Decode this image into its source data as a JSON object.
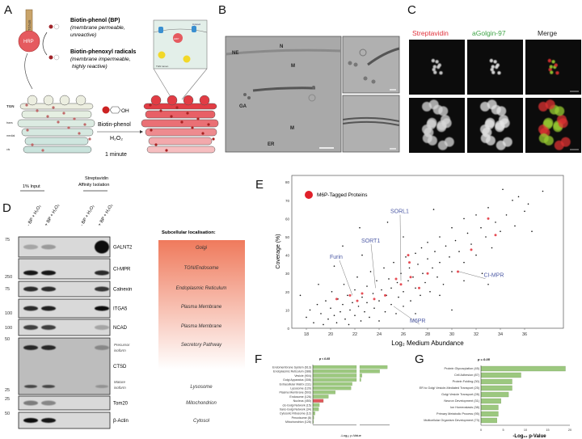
{
  "panels": {
    "a": "A",
    "b": "B",
    "c": "C",
    "d": "D",
    "e": "E",
    "f": "F",
    "g": "G"
  },
  "panel_a": {
    "tgn46_label": "TGN46",
    "hrp_label": "HRP",
    "bp_title": "Biotin-phenol (BP)",
    "bp_desc1": "(membrane permeable,",
    "bp_desc2": "unreactive)",
    "radical_title": "Biotin-phenoxyl radicals",
    "radical_desc1": "(membrane impermeable,",
    "radical_desc2": "highly reactive)",
    "inset_cytosol": "Cytosol",
    "inset_hrp": "HRP",
    "inset_lumen": "TGN lumen",
    "stack_labels": [
      "TGN",
      "trans",
      "medial",
      "cis"
    ],
    "oh_label": "OH",
    "reagent": "Biotin-phenol",
    "h2o2": "H₂O₂",
    "time": "1 minute",
    "colors": {
      "untreated": "#dcebe0",
      "labelled": "#e23c44"
    }
  },
  "panel_b": {
    "labels": [
      "NE",
      "N",
      "M",
      "GA",
      "M",
      "ER"
    ]
  },
  "panel_c": {
    "headers": [
      {
        "text": "Streptavidin",
        "color": "#e0313b"
      },
      {
        "text": "aGolgin-97",
        "color": "#3fa447"
      },
      {
        "text": "Merge",
        "color": "#222222"
      }
    ]
  },
  "panel_d": {
    "input_header": "1% Input",
    "sa_header1": "Streptavidin",
    "sa_header2": "Affinity Isolation",
    "lanes": [
      "- BP + H₂O₂",
      "+ BP + H₂O₂",
      "- BP + H₂O₂",
      "+ BP + H₂O₂"
    ],
    "mw_markers": [
      "75",
      "250",
      "75",
      "100",
      "100",
      "50",
      "25",
      "25",
      "50"
    ],
    "blots": [
      {
        "protein": "GALNT2",
        "bands": [
          0.25,
          0.3,
          0,
          1.0
        ]
      },
      {
        "protein": "CI-MPR",
        "bands": [
          0.95,
          0.95,
          0,
          0.85
        ]
      },
      {
        "protein": "Calnexin",
        "bands": [
          0.85,
          0.85,
          0,
          0.8
        ]
      },
      {
        "protein": "ITGA5",
        "bands": [
          0.85,
          0.9,
          0,
          1.0
        ]
      },
      {
        "protein": "NCAD",
        "bands": [
          0.75,
          0.75,
          0,
          0.25
        ]
      },
      {
        "protein": "CTSD",
        "bands": [
          0.85,
          0.85,
          0,
          0.3
        ]
      },
      {
        "protein": "Tom20",
        "bands": [
          0.45,
          0.4,
          0,
          0
        ]
      },
      {
        "protein": "β-Actin",
        "bands": [
          1.0,
          0.95,
          0,
          0
        ]
      }
    ],
    "ctsd_precursor": [
      "Precursor",
      "isoform"
    ],
    "ctsd_mature": [
      "Mature",
      "isoform"
    ],
    "localisation_title": "Subcellular localisation:",
    "localisations": [
      "Golgi",
      "TGN/Endosome",
      "Endoplasmic Reticulum",
      "Plasma Membrane",
      "Plasma Membrane",
      "Secretory Pathway",
      "Lysosome",
      "Mitochondrion",
      "Cytosol"
    ],
    "gradient_color": "#ef7a5c"
  },
  "chart_data": [
    {
      "type": "scatter",
      "xlabel": "Log₂ Medium Abundance",
      "ylabel": "Coverage (%)",
      "xlim": [
        16.8,
        39.2
      ],
      "ylim": [
        0,
        82
      ],
      "xticks": [
        18,
        20,
        22,
        24,
        26,
        28,
        30,
        32,
        34,
        36
      ],
      "yticks": [
        0,
        10,
        20,
        30,
        40,
        50,
        60,
        70,
        80
      ],
      "legend": {
        "label": "M6P-Tagged Proteins",
        "color": "#e0202a",
        "position": "top-left"
      },
      "series": [
        {
          "color": "#111111",
          "points": [
            [
              17.5,
              18
            ],
            [
              18,
              6
            ],
            [
              18.3,
              10
            ],
            [
              18.6,
              3
            ],
            [
              18.9,
              13
            ],
            [
              19.2,
              8
            ],
            [
              19.4,
              2
            ],
            [
              19.6,
              15
            ],
            [
              19.8,
              5
            ],
            [
              20,
              11
            ],
            [
              20.1,
              20
            ],
            [
              20.3,
              7
            ],
            [
              20.5,
              3
            ],
            [
              20.6,
              16
            ],
            [
              20.8,
              9
            ],
            [
              21,
              13
            ],
            [
              21.1,
              24
            ],
            [
              21.2,
              5
            ],
            [
              21.4,
              18
            ],
            [
              21.5,
              2
            ],
            [
              21.6,
              10
            ],
            [
              21.8,
              14
            ],
            [
              22,
              7
            ],
            [
              22,
              21
            ],
            [
              22.2,
              28
            ],
            [
              22.3,
              12
            ],
            [
              22.5,
              4
            ],
            [
              22.6,
              17
            ],
            [
              22.8,
              9
            ],
            [
              23,
              23
            ],
            [
              23,
              14
            ],
            [
              23.2,
              6
            ],
            [
              23.3,
              31
            ],
            [
              23.5,
              19
            ],
            [
              23.6,
              11
            ],
            [
              23.8,
              26
            ],
            [
              24,
              15
            ],
            [
              24,
              4
            ],
            [
              24.2,
              21
            ],
            [
              24.4,
              33
            ],
            [
              24.5,
              9
            ],
            [
              24.6,
              18
            ],
            [
              24.8,
              27
            ],
            [
              25,
              13
            ],
            [
              25,
              22
            ],
            [
              25.2,
              36
            ],
            [
              25.4,
              8
            ],
            [
              25.5,
              25
            ],
            [
              25.6,
              17
            ],
            [
              25.8,
              30
            ],
            [
              26,
              20
            ],
            [
              26,
              12
            ],
            [
              26.2,
              39
            ],
            [
              26.4,
              26
            ],
            [
              26.5,
              33
            ],
            [
              26.6,
              15
            ],
            [
              26.8,
              28
            ],
            [
              27,
              41
            ],
            [
              27,
              22
            ],
            [
              27.2,
              35
            ],
            [
              27.4,
              18
            ],
            [
              27.5,
              44
            ],
            [
              27.6,
              30
            ],
            [
              27.8,
              25
            ],
            [
              28,
              38
            ],
            [
              28,
              47
            ],
            [
              28.2,
              20
            ],
            [
              28.4,
              33
            ],
            [
              28.6,
              42
            ],
            [
              28.8,
              28
            ],
            [
              29,
              50
            ],
            [
              29,
              36
            ],
            [
              29.3,
              24
            ],
            [
              29.5,
              45
            ],
            [
              29.8,
              39
            ],
            [
              30,
              55
            ],
            [
              30,
              31
            ],
            [
              30.3,
              48
            ],
            [
              30.6,
              42
            ],
            [
              31,
              60
            ],
            [
              31,
              36
            ],
            [
              31.3,
              52
            ],
            [
              31.6,
              46
            ],
            [
              32,
              62
            ],
            [
              32,
              40
            ],
            [
              32.4,
              55
            ],
            [
              32.8,
              50
            ],
            [
              33,
              66
            ],
            [
              33.3,
              44
            ],
            [
              33.6,
              58
            ],
            [
              34,
              53
            ],
            [
              34.2,
              76
            ],
            [
              34.5,
              62
            ],
            [
              35,
              70
            ],
            [
              35.2,
              56
            ],
            [
              35.5,
              72
            ],
            [
              36,
              64
            ],
            [
              36.3,
              68
            ],
            [
              36.6,
              53
            ],
            [
              37.5,
              75
            ],
            [
              22.4,
              55
            ],
            [
              21,
              45
            ],
            [
              20.3,
              34
            ],
            [
              24.7,
              58
            ],
            [
              28.5,
              65
            ],
            [
              27,
              8
            ],
            [
              29,
              18
            ],
            [
              31,
              26
            ],
            [
              33,
              24
            ],
            [
              30,
              10
            ],
            [
              19,
              24
            ],
            [
              22.6,
              40
            ],
            [
              26,
              50
            ],
            [
              32.5,
              30
            ]
          ]
        },
        {
          "name": "M6P-Tagged Proteins",
          "color": "#e0202a",
          "points": [
            [
              21.6,
              18
            ],
            [
              22.2,
              15
            ],
            [
              22.6,
              19
            ],
            [
              23.6,
              16
            ],
            [
              24.5,
              18
            ],
            [
              25.4,
              27
            ],
            [
              25.8,
              24
            ],
            [
              26.4,
              40
            ],
            [
              26.5,
              36
            ],
            [
              26.6,
              28
            ],
            [
              27.3,
              22
            ],
            [
              28,
              30
            ],
            [
              30.5,
              31
            ],
            [
              31.6,
              43
            ],
            [
              33,
              60
            ],
            [
              33.6,
              51
            ],
            [
              20.5,
              16
            ]
          ]
        }
      ],
      "annotations": [
        {
          "text": "Furin",
          "x": 20.6,
          "y": 38,
          "target": [
            21.8,
            18
          ]
        },
        {
          "text": "SORT1",
          "x": 23.2,
          "y": 47,
          "target": [
            23.7,
            22
          ]
        },
        {
          "text": "SORL1",
          "x": 25.6,
          "y": 63,
          "target": [
            25.8,
            26
          ]
        },
        {
          "text": "CI-MPR",
          "x": 33.3,
          "y": 28,
          "target": [
            30.6,
            31
          ]
        },
        {
          "text": "M6PR",
          "x": 27.2,
          "y": 3,
          "target": [
            25.2,
            12
          ]
        }
      ],
      "annotation_color": "#4d5aa5"
    },
    {
      "type": "bar",
      "orientation": "horizontal",
      "title": "p < 0.05",
      "xlabel": "-Log₁₀ p-Value",
      "axis_break": [
        12,
        12
      ],
      "xlim": [
        0,
        35
      ],
      "categories": [
        "Endomembrane System (613)",
        "Endoplasmic Reticulum (388)",
        "Vesicle (904)",
        "Golgi Apparatus (308)",
        "Extracellular Matrix (111)",
        "Lysosome (120)",
        "Plasma Membrane (503)",
        "Endosome (126)",
        "Nucleus (450)",
        "cis-Golgi Network (15)",
        "trans-Golgi Network (34)",
        "Cytosolic Ribosome (12)",
        "Peroxisome (8)",
        "Mitochondrion (128)"
      ],
      "values": [
        30,
        25,
        13.5,
        12.8,
        10.8,
        10.5,
        6.2,
        4.3,
        2.9,
        1.8,
        1.6,
        0.6,
        0.3,
        0.2
      ],
      "colors": [
        "#9cc87f",
        "#9cc87f",
        "#9cc87f",
        "#9cc87f",
        "#9cc87f",
        "#9cc87f",
        "#9cc87f",
        "#9cc87f",
        "#e0585d",
        "#9cc87f",
        "#9cc87f",
        "#9cc87f",
        "#9cc87f",
        "#9cc87f"
      ]
    },
    {
      "type": "bar",
      "orientation": "horizontal",
      "title": "p = 0.05",
      "xlabel": "-Log₁₀ p-Value",
      "xlim": [
        0,
        20
      ],
      "xticks": [
        0,
        5,
        10,
        15,
        20
      ],
      "categories": [
        "Protein Glycosylation (45)",
        "Cell Adhesion (87)",
        "Protein Folding (30)",
        "ER to Golgi Vesicle-Mediated Transport (25)",
        "Golgi Vesicle Transport (28)",
        "Neuron Development (31)",
        "Ion Homeostasis (38)",
        "Primary Metabolic Process (95)",
        "Multicellular Organism Development (73)"
      ],
      "values": [
        19,
        9,
        7,
        7,
        6.2,
        4.5,
        3.9,
        3.9,
        3.6
      ],
      "color": "#9cc87f"
    }
  ]
}
